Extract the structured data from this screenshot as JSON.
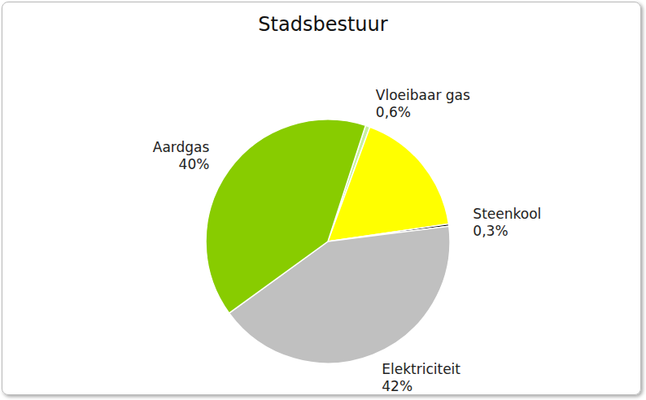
{
  "chart_data": {
    "type": "pie",
    "title": "Stadsbestuur",
    "categories": [
      "Vloeibaar gas",
      null,
      "Steenkool",
      "Elektriciteit",
      "Aardgas"
    ],
    "values": [
      0.6,
      17.1,
      0.3,
      42,
      40
    ],
    "value_labels": [
      "0,6%",
      null,
      "0,3%",
      "42%",
      "40%"
    ],
    "colors": [
      "#c8f0a0",
      "#ffff00",
      "#000000",
      "#c0c0c0",
      "#88cc00"
    ]
  }
}
